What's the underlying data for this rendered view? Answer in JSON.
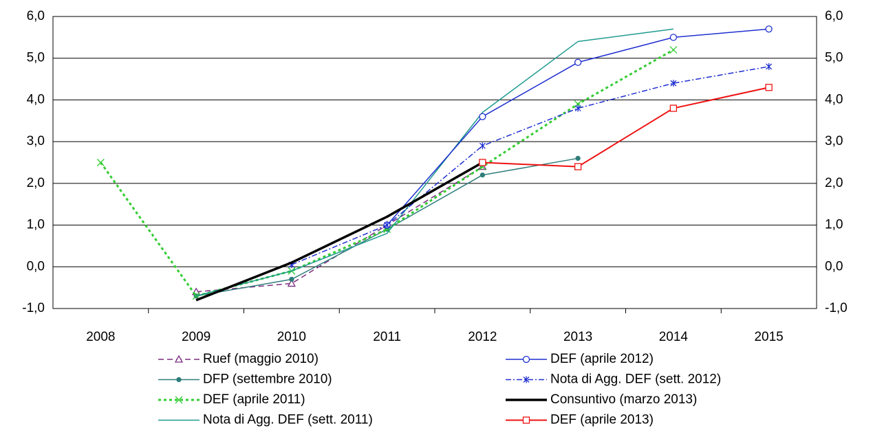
{
  "chart_data": {
    "type": "line",
    "categories": [
      "2008",
      "2009",
      "2010",
      "2011",
      "2012",
      "2013",
      "2014",
      "2015"
    ],
    "ylim": [
      -1,
      6
    ],
    "yticks": [
      {
        "value": -1,
        "label": "-1,0"
      },
      {
        "value": 0,
        "label": "0,0"
      },
      {
        "value": 1,
        "label": "1,0"
      },
      {
        "value": 2,
        "label": "2,0"
      },
      {
        "value": 3,
        "label": "3,0"
      },
      {
        "value": 4,
        "label": "4,0"
      },
      {
        "value": 5,
        "label": "5,0"
      },
      {
        "value": 6,
        "label": "6,0"
      }
    ],
    "grid": true,
    "series": [
      {
        "name": "Ruef (maggio 2010)",
        "color": "#7b2c7f",
        "dash": "8,5",
        "marker": "triangle",
        "width": 1.5,
        "values": [
          null,
          -0.6,
          -0.4,
          1.0,
          2.4,
          null,
          null,
          null
        ]
      },
      {
        "name": "DFP (settembre 2010)",
        "color": "#2e7d7a",
        "dash": "",
        "marker": "dot",
        "width": 1.5,
        "values": [
          null,
          -0.7,
          -0.3,
          0.9,
          2.2,
          2.6,
          null,
          null
        ]
      },
      {
        "name": "DEF (aprile 2011)",
        "color": "#33cc33",
        "dash": "4,4",
        "marker": "x",
        "width": 3,
        "values": [
          2.5,
          -0.7,
          -0.1,
          0.9,
          2.4,
          3.9,
          5.2,
          null
        ]
      },
      {
        "name": "Nota di Agg. DEF (sett. 2011)",
        "color": "#1f9a8f",
        "dash": "",
        "marker": "none",
        "width": 1.5,
        "values": [
          null,
          -0.7,
          -0.1,
          0.8,
          3.7,
          5.4,
          5.7,
          null
        ]
      },
      {
        "name": "DEF (aprile 2012)",
        "color": "#1f2fd0",
        "dash": "",
        "marker": "circle",
        "width": 1.5,
        "values": [
          null,
          null,
          null,
          1.0,
          3.6,
          4.9,
          5.5,
          5.7
        ]
      },
      {
        "name": "Nota di Agg. DEF (sett. 2012)",
        "color": "#1f2fd0",
        "dash": "8,3,2,3",
        "marker": "star",
        "width": 1.5,
        "values": [
          null,
          null,
          0.05,
          1.0,
          2.9,
          3.8,
          4.4,
          4.8
        ]
      },
      {
        "name": "Consuntivo (marzo 2013)",
        "color": "#000000",
        "dash": "",
        "marker": "none",
        "width": 3.5,
        "values": [
          null,
          -0.8,
          0.1,
          1.2,
          2.5,
          null,
          null,
          null
        ]
      },
      {
        "name": "DEF (aprile 2013)",
        "color": "#ee1111",
        "dash": "",
        "marker": "square",
        "width": 2,
        "values": [
          null,
          null,
          null,
          null,
          2.5,
          2.4,
          3.8,
          4.3
        ]
      }
    ]
  }
}
